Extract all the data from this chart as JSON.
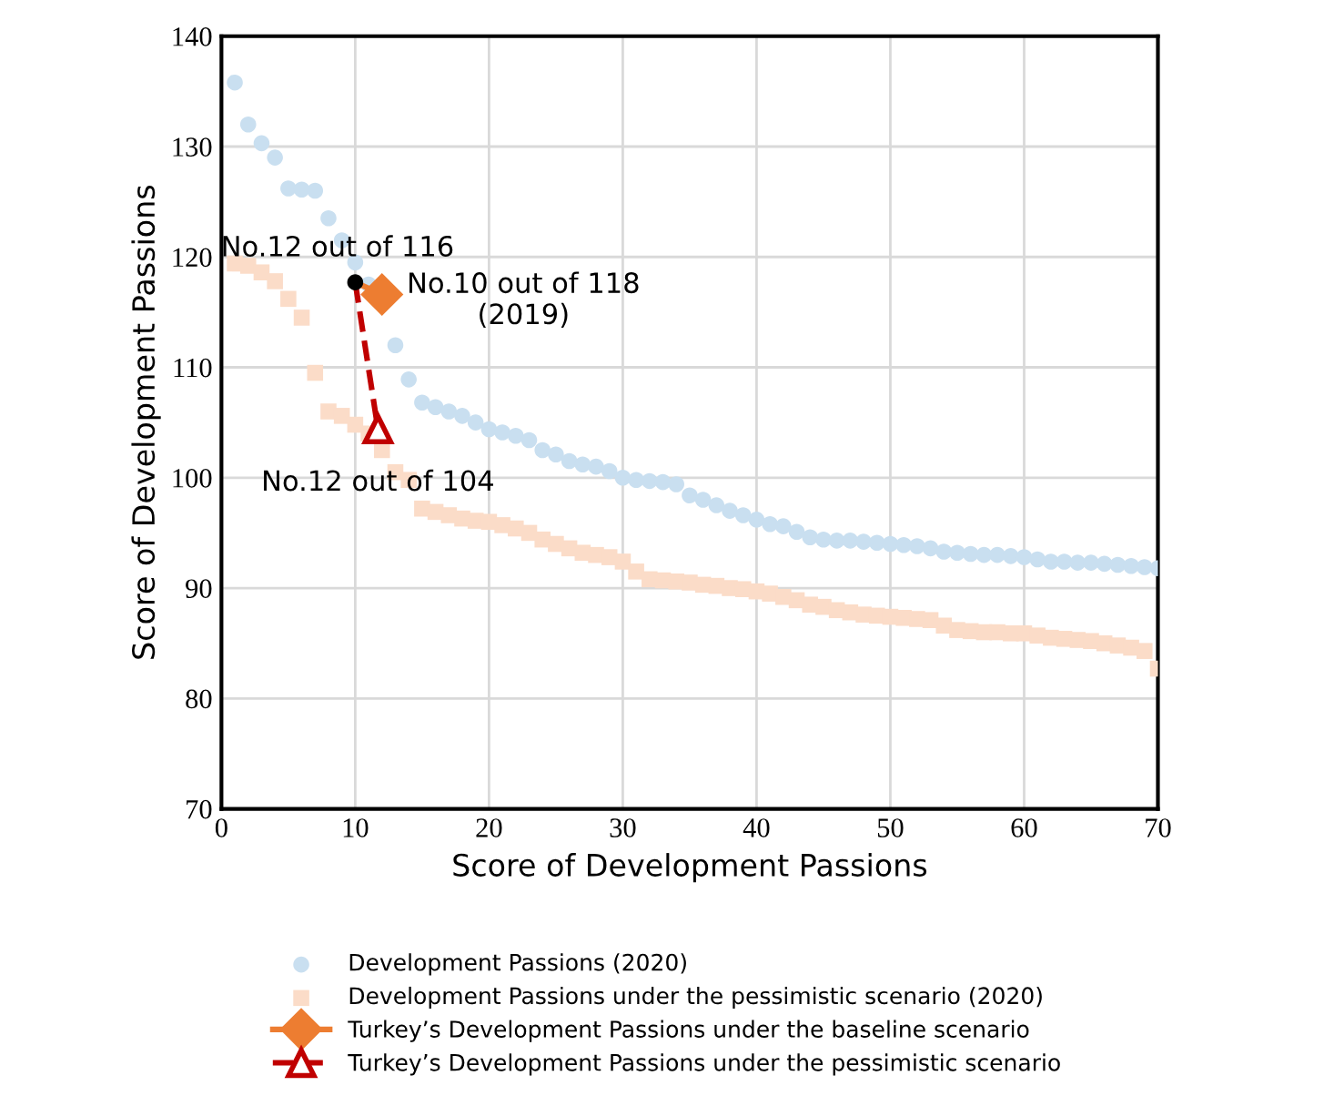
{
  "chart_data": {
    "type": "scatter",
    "xlabel": "Score of Development Passions",
    "ylabel": "Score of Development Passions",
    "x": [
      1,
      2,
      3,
      4,
      5,
      6,
      7,
      8,
      9,
      10,
      11,
      12,
      13,
      14,
      15,
      16,
      17,
      18,
      19,
      20,
      21,
      22,
      23,
      24,
      25,
      26,
      27,
      28,
      29,
      30,
      31,
      32,
      33,
      34,
      35,
      36,
      37,
      38,
      39,
      40,
      41,
      42,
      43,
      44,
      45,
      46,
      47,
      48,
      49,
      50,
      51,
      52,
      53,
      54,
      55,
      56,
      57,
      58,
      59,
      60,
      61,
      62,
      63,
      64,
      65,
      66,
      67,
      68,
      69,
      70
    ],
    "series": [
      {
        "name": "Development Passions (2020)",
        "color": "#c9dff0",
        "marker": "circle",
        "values": [
          135.8,
          132,
          130.3,
          129,
          126.2,
          126.1,
          126,
          123.5,
          121.5,
          119.5,
          117.5,
          null,
          112,
          108.9,
          106.8,
          106.4,
          106,
          105.6,
          105,
          104.4,
          104.1,
          103.8,
          103.4,
          102.5,
          102.1,
          101.5,
          101.2,
          101,
          100.6,
          100,
          99.8,
          99.7,
          99.6,
          99.4,
          98.4,
          98,
          97.5,
          97,
          96.6,
          96.2,
          95.8,
          95.6,
          95.1,
          94.6,
          94.4,
          94.3,
          94.3,
          94.2,
          94.1,
          94,
          93.9,
          93.8,
          93.6,
          93.3,
          93.2,
          93.1,
          93,
          93,
          92.9,
          92.8,
          92.6,
          92.4,
          92.4,
          92.3,
          92.3,
          92.2,
          92.1,
          92,
          91.9,
          91.8
        ]
      },
      {
        "name": "Development Passions under the pessimistic scenario (2020)",
        "color": "#fbdcc8",
        "marker": "square",
        "values": [
          119.4,
          119.2,
          118.6,
          117.8,
          116.2,
          114.5,
          109.5,
          106,
          105.6,
          104.8,
          104,
          102.5,
          100.5,
          99.8,
          97.2,
          96.9,
          96.6,
          96.3,
          96.1,
          96,
          95.7,
          95.4,
          95,
          94.4,
          94,
          93.6,
          93.2,
          93,
          92.8,
          92.4,
          91.5,
          90.8,
          90.7,
          90.6,
          90.5,
          90.3,
          90.2,
          90,
          89.9,
          89.7,
          89.5,
          89.2,
          88.9,
          88.5,
          88.3,
          88,
          87.8,
          87.6,
          87.5,
          87.4,
          87.3,
          87.2,
          87.1,
          86.6,
          86.2,
          86.1,
          86,
          86,
          85.9,
          85.9,
          85.7,
          85.5,
          85.4,
          85.3,
          85.2,
          85,
          84.8,
          84.6,
          84.3,
          82.7
        ]
      },
      {
        "name": "Turkey’s Development Passions under the baseline scenario",
        "type": "line",
        "color": "#ed7d31",
        "marker": "diamond",
        "line_style": "solid",
        "x": [
          10,
          12
        ],
        "values": [
          117.7,
          116.6
        ]
      },
      {
        "name": "Turkey’s Development Passions under the pessimistic scenario",
        "type": "line",
        "color": "#c00000",
        "marker": "triangle",
        "line_style": "dashed",
        "x": [
          10,
          11.7
        ],
        "values": [
          117.7,
          104.4
        ]
      },
      {
        "color": "#000000",
        "marker": "circle",
        "x": [
          10
        ],
        "values": [
          117.7
        ]
      }
    ],
    "annotations": [
      {
        "text": "No.12 out of 116",
        "x": 10,
        "y": 117.7
      },
      {
        "text": "No.10 out of 118\n(2019)",
        "x": 12,
        "y": 116.6
      },
      {
        "text": "No.12 out of 104",
        "x": 11.7,
        "y": 104.4
      }
    ],
    "xlim": [
      0,
      70
    ],
    "xticks": [
      0,
      10,
      20,
      30,
      40,
      50,
      60,
      70
    ],
    "ylim": [
      70,
      140
    ],
    "yticks": [
      70,
      80,
      90,
      100,
      110,
      120,
      130,
      140
    ],
    "grid": true,
    "legend": "bottom"
  }
}
